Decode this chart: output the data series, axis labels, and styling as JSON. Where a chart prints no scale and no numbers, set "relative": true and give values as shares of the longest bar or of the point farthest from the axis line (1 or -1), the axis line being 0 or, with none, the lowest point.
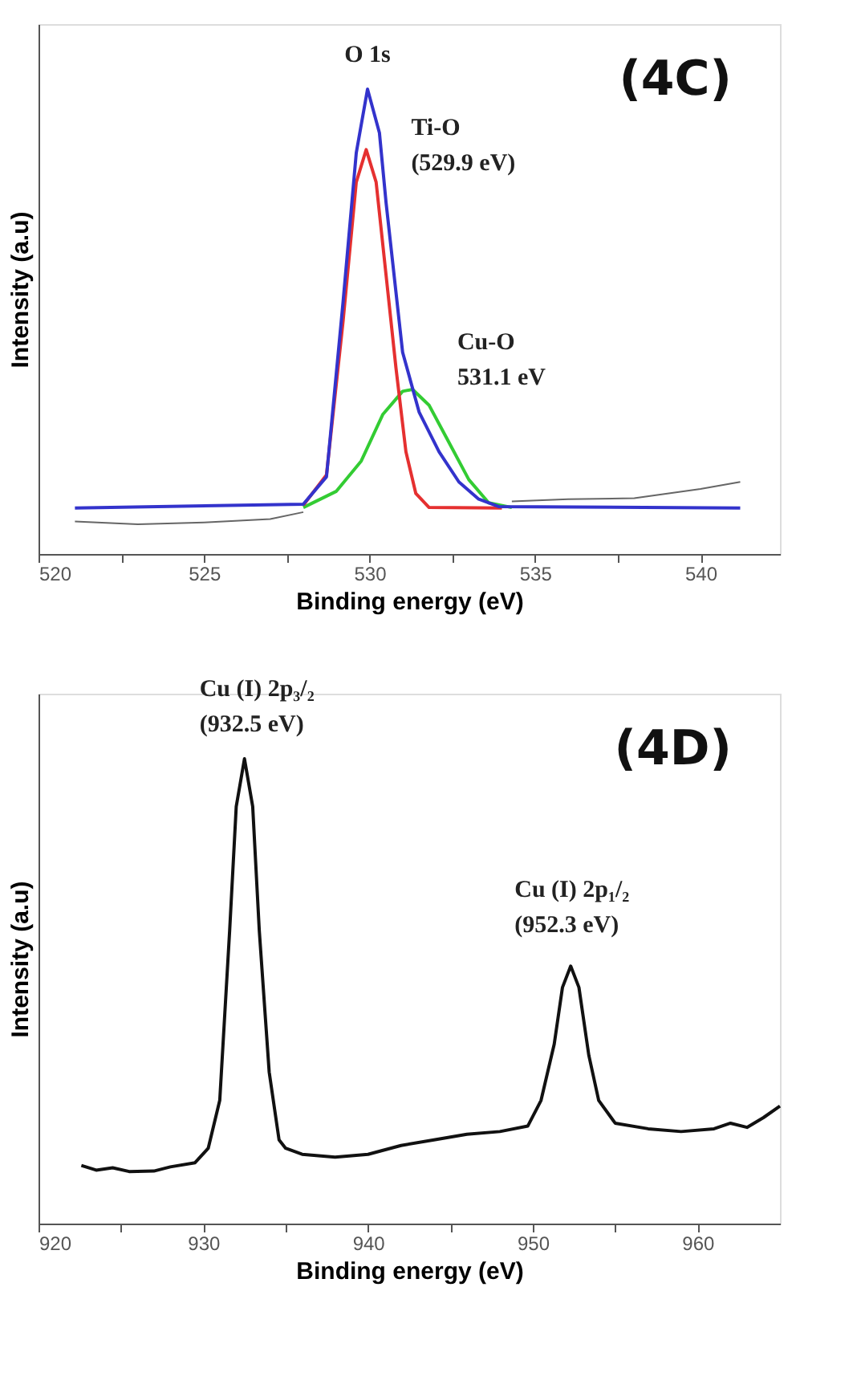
{
  "chart_data": [
    {
      "type": "line",
      "relative": true,
      "xlabel": "Binding energy (eV)",
      "ylabel": "Intensity (a.u)",
      "xlim": [
        520,
        542.4
      ],
      "xticks": [
        520,
        {
          "value": 522.5,
          "label": null
        },
        525,
        {
          "value": 527.5,
          "label": null
        },
        530,
        {
          "value": 532.5,
          "label": null
        },
        535,
        {
          "value": 537.5,
          "label": null
        },
        540
      ],
      "grid": false,
      "tick_labels": "x",
      "line_style": "solid",
      "marker": "none",
      "series": [
        {
          "color": "#666666",
          "x": [
            521.1,
            523,
            525,
            527,
            528
          ],
          "values": [
            0.07,
            0.064,
            0.068,
            0.075,
            0.09
          ]
        },
        {
          "color": "#666666",
          "x": [
            534.3,
            536,
            538,
            539,
            540,
            541.2
          ],
          "values": [
            0.113,
            0.118,
            0.12,
            0.13,
            0.14,
            0.155
          ]
        },
        {
          "color": "#33cc33",
          "x": [
            528.0,
            529.0,
            529.75,
            530.4,
            531.0,
            531.3,
            531.8,
            532.4,
            533.0,
            533.6,
            534.3
          ],
          "values": [
            0.1,
            0.135,
            0.2,
            0.3,
            0.35,
            0.354,
            0.32,
            0.24,
            0.16,
            0.11,
            0.1
          ]
        },
        {
          "color": "#e53030",
          "x": [
            528.0,
            528.7,
            529.2,
            529.6,
            529.9,
            530.2,
            530.5,
            530.8,
            531.1,
            531.4,
            531.8,
            534.0
          ],
          "values": [
            0.105,
            0.17,
            0.5,
            0.8,
            0.87,
            0.8,
            0.6,
            0.4,
            0.22,
            0.13,
            0.1,
            0.099
          ]
        },
        {
          "color": "#3333cc",
          "x": [
            521.1,
            528.0,
            528.7,
            529.2,
            529.6,
            529.94,
            530.3,
            530.5,
            531.0,
            531.5,
            532.1,
            532.7,
            533.3,
            533.9,
            541.2
          ],
          "values": [
            0.099,
            0.107,
            0.166,
            0.541,
            0.863,
            1,
            0.906,
            0.756,
            0.434,
            0.305,
            0.22,
            0.155,
            0.118,
            0.102,
            0.099
          ]
        }
      ],
      "annotations": [
        {
          "text": "O 1s",
          "x": 529.94,
          "y": 1
        },
        {
          "text": "Ti-O\n(529.9 eV)",
          "x": 529.9,
          "y": 0.87
        },
        {
          "text": "Cu-O\n531.1 eV",
          "x": 531.1,
          "y": 0.354
        },
        "(4C)"
      ]
    },
    {
      "type": "line",
      "relative": true,
      "xlabel": "Binding energy (eV)",
      "ylabel": "Intensity (a.u)",
      "xlim": [
        920,
        965
      ],
      "xticks": [
        920,
        {
          "value": 925,
          "label": null
        },
        930,
        {
          "value": 935,
          "label": null
        },
        940,
        {
          "value": 945,
          "label": null
        },
        950,
        {
          "value": 955,
          "label": null
        },
        960
      ],
      "grid": false,
      "tick_labels": "x",
      "line_style": "solid",
      "marker": "none",
      "series": [
        {
          "color": "#111111",
          "x": [
            922.6,
            923.5,
            924.5,
            925.5,
            927,
            928,
            929.5,
            930.3,
            931,
            931.6,
            932.0,
            932.5,
            933.0,
            933.4,
            934,
            934.6,
            935,
            936,
            938,
            940,
            942,
            944,
            946,
            948,
            949.7,
            950.5,
            951.3,
            951.8,
            952.3,
            952.8,
            953.4,
            954,
            955,
            957,
            959,
            961,
            962,
            963,
            964,
            965
          ],
          "values": [
            0.125,
            0.115,
            0.12,
            0.112,
            0.113,
            0.122,
            0.131,
            0.162,
            0.265,
            0.63,
            0.897,
            1,
            0.897,
            0.63,
            0.326,
            0.18,
            0.162,
            0.149,
            0.143,
            0.149,
            0.168,
            0.18,
            0.192,
            0.198,
            0.21,
            0.265,
            0.386,
            0.508,
            0.554,
            0.508,
            0.362,
            0.265,
            0.216,
            0.204,
            0.198,
            0.204,
            0.216,
            0.207,
            0.228,
            0.253
          ]
        }
      ],
      "annotations": [
        {
          "text": "Cu (I) 2p₃/₂\n(932.5 eV)",
          "x": 932.5,
          "y": 1
        },
        {
          "text": "Cu (I) 2p₁/₂\n(952.3 eV)",
          "x": 952.3,
          "y": 0.554
        },
        "(4D)"
      ]
    }
  ]
}
